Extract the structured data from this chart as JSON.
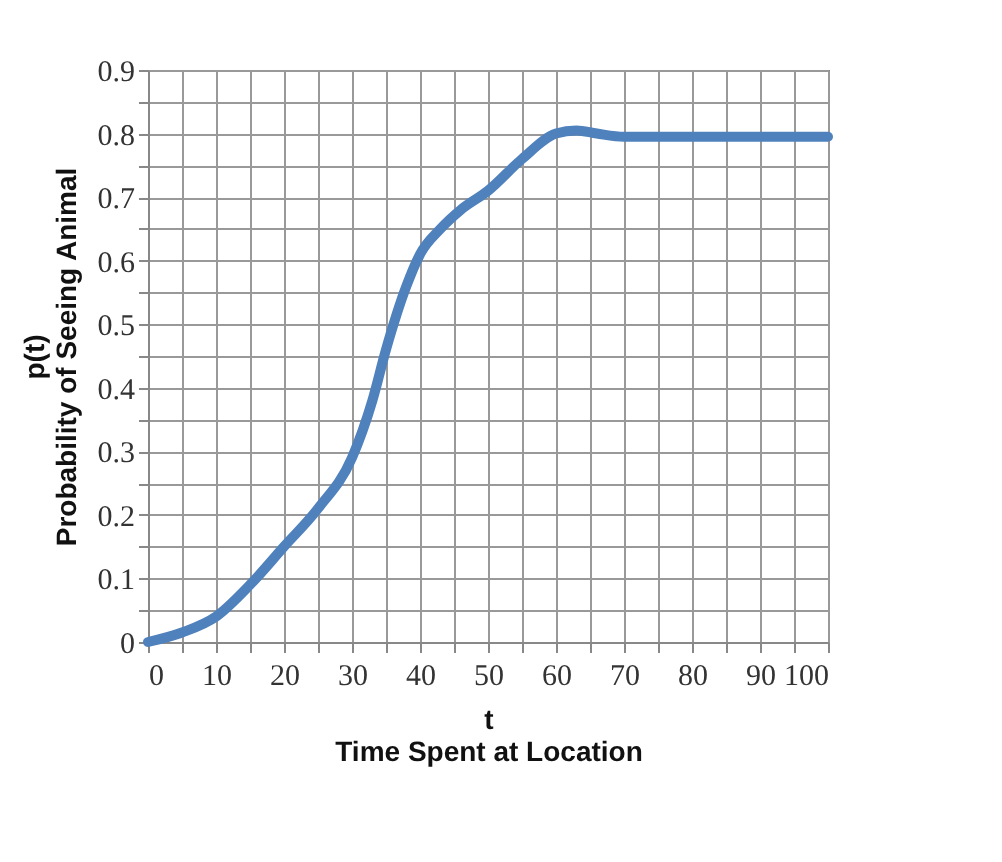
{
  "chart_data": {
    "type": "line",
    "xlabel": "t\nTime Spent at Location",
    "ylabel": "p(t)\nProbability of Seeing Animal",
    "x": [
      0,
      5,
      10,
      15,
      20,
      25,
      30,
      33,
      35,
      38,
      40,
      43,
      46,
      50,
      55,
      60,
      63,
      66,
      70,
      80,
      90,
      100
    ],
    "series": [
      {
        "color": "#4f81bd",
        "values": [
          0,
          0.015,
          0.04,
          0.09,
          0.15,
          0.21,
          0.29,
          0.38,
          0.46,
          0.56,
          0.61,
          0.65,
          0.68,
          0.71,
          0.76,
          0.8,
          0.805,
          0.8,
          0.795,
          0.795,
          0.795,
          0.795
        ]
      }
    ],
    "xlim": [
      0,
      100
    ],
    "ylim": [
      0,
      0.9
    ],
    "xticks": [
      0,
      {
        "value": 5,
        "label": null
      },
      10,
      {
        "value": 15,
        "label": null
      },
      20,
      {
        "value": 25,
        "label": null
      },
      30,
      {
        "value": 35,
        "label": null
      },
      40,
      {
        "value": 45,
        "label": null
      },
      50,
      {
        "value": 55,
        "label": null
      },
      60,
      {
        "value": 65,
        "label": null
      },
      70,
      {
        "value": 75,
        "label": null
      },
      80,
      {
        "value": 85,
        "label": null
      },
      90,
      {
        "value": 95,
        "label": null
      },
      100
    ],
    "yticks": [
      0,
      {
        "value": 0.05,
        "label": null
      },
      0.1,
      {
        "value": 0.15,
        "label": null
      },
      0.2,
      {
        "value": 0.25,
        "label": null
      },
      0.3,
      {
        "value": 0.35,
        "label": null
      },
      0.4,
      {
        "value": 0.45,
        "label": null
      },
      0.5,
      {
        "value": 0.55,
        "label": null
      },
      0.6,
      {
        "value": 0.65,
        "label": null
      },
      0.7,
      {
        "value": 0.75,
        "label": null
      },
      0.8,
      {
        "value": 0.85,
        "label": null
      },
      0.9
    ],
    "grid": true,
    "marker": "none",
    "line_style": "solid"
  }
}
